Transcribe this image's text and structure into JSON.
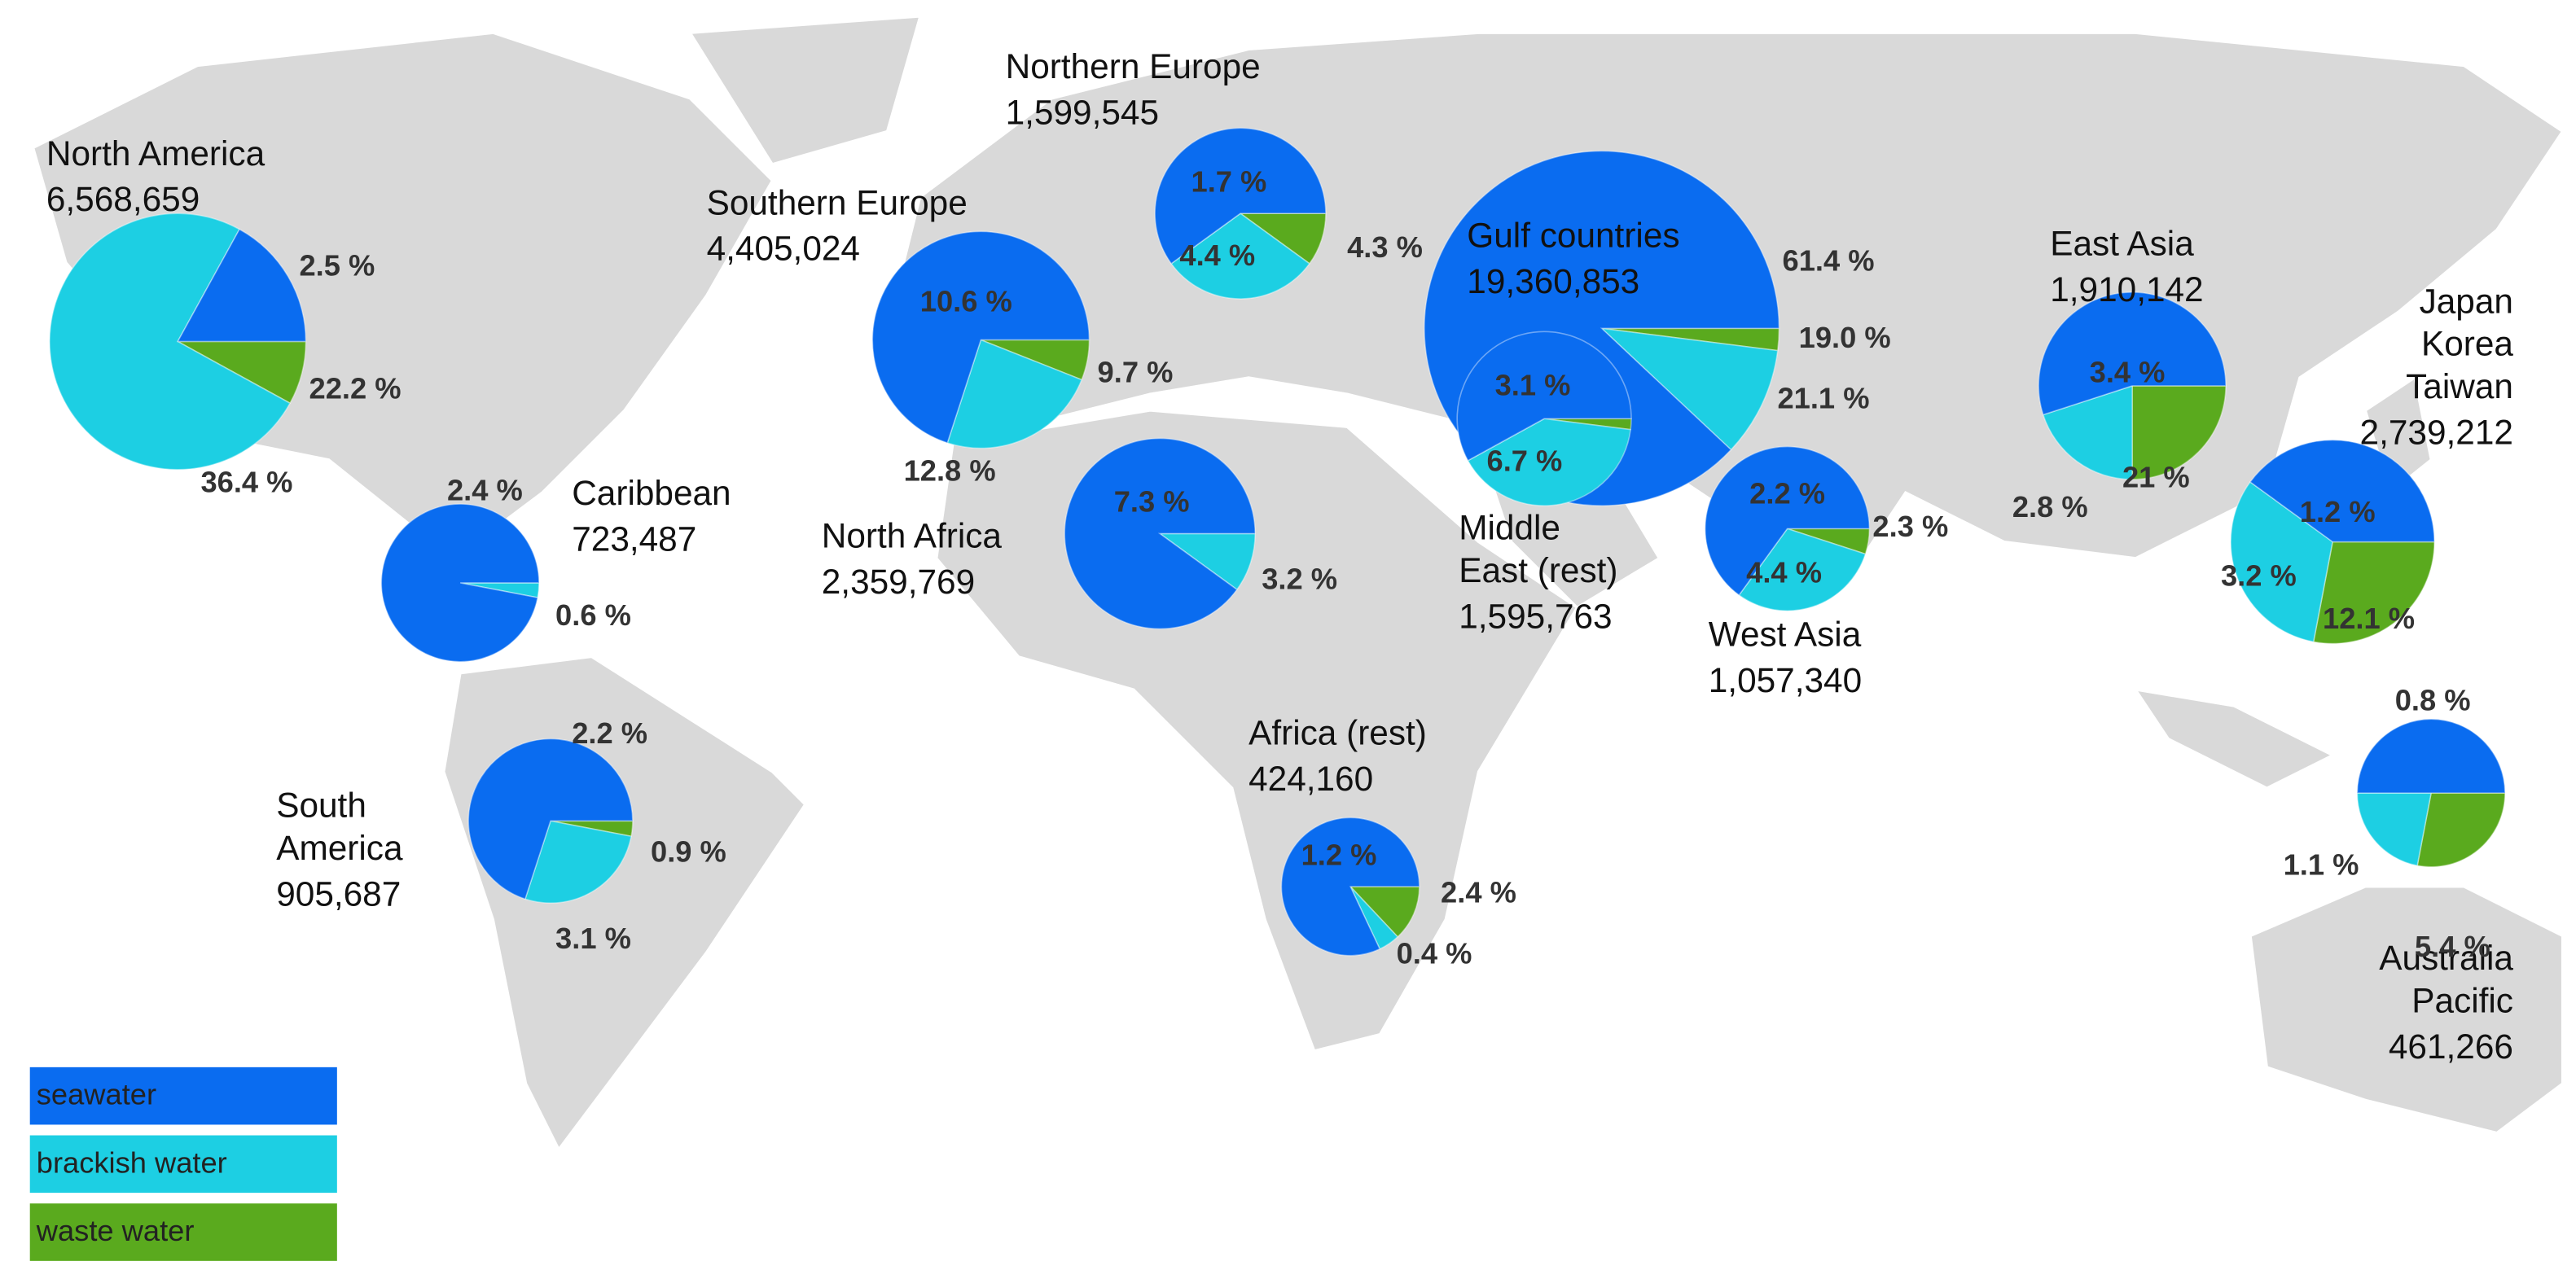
{
  "chart_data": {
    "type": "pie",
    "series": [
      {
        "name": "seawater",
        "color": "#0a6cf0"
      },
      {
        "name": "brackish water",
        "color": "#1dcfe3"
      },
      {
        "name": "waste water",
        "color": "#5aaa1e"
      }
    ],
    "regions": [
      {
        "name_lines": [
          "North America"
        ],
        "capacity": "6,568,659",
        "slices": [
          17,
          75,
          8
        ],
        "labels": [
          "2.5 %",
          "22.2 %",
          "36.4 %"
        ]
      },
      {
        "name_lines": [
          "Northern Europe"
        ],
        "capacity": "1,599,545",
        "slices": [
          60,
          30,
          10
        ],
        "labels": [
          "1.7 %",
          "4.4 %",
          "4.3 %"
        ]
      },
      {
        "name_lines": [
          "Southern Europe"
        ],
        "capacity": "4,405,024",
        "slices": [
          70,
          24,
          6
        ],
        "labels": [
          "10.6 %",
          "9.7 %",
          "12.8 %"
        ]
      },
      {
        "name_lines": [
          "Gulf countries"
        ],
        "capacity": "19,360,853",
        "slices": [
          88,
          10,
          2
        ],
        "labels": [
          "61.4 %",
          "19.0 %",
          "21.1 %"
        ]
      },
      {
        "name_lines": [
          "Middle",
          "East (rest)"
        ],
        "capacity": "1,595,763",
        "slices": [
          58,
          40,
          2
        ],
        "labels": [
          "3.1 %",
          "6.7 %"
        ]
      },
      {
        "name_lines": [
          "East Asia"
        ],
        "capacity": "1,910,142",
        "slices": [
          55,
          20,
          25
        ],
        "labels": [
          "3.4 %",
          "21 %",
          "2.8 %"
        ]
      },
      {
        "name_lines": [
          "Japan",
          "Korea",
          "Taiwan"
        ],
        "capacity": "2,739,212",
        "slices": [
          40,
          32,
          28
        ],
        "labels": [
          "1.2 %",
          "3.2 %",
          "12.1 %"
        ]
      },
      {
        "name_lines": [
          "Caribbean"
        ],
        "capacity": "723,487",
        "slices": [
          97,
          3,
          0
        ],
        "labels": [
          "2.4 %",
          "0.6 %"
        ]
      },
      {
        "name_lines": [
          "North Africa"
        ],
        "capacity": "2,359,769",
        "slices": [
          90,
          10,
          0
        ],
        "labels": [
          "7.3 %",
          "3.2 %"
        ]
      },
      {
        "name_lines": [
          "West Asia"
        ],
        "capacity": "1,057,340",
        "slices": [
          65,
          30,
          5
        ],
        "labels": [
          "2.2 %",
          "4.4 %",
          "2.3 %"
        ]
      },
      {
        "name_lines": [
          "South",
          "America"
        ],
        "capacity": "905,687",
        "slices": [
          70,
          27,
          3
        ],
        "labels": [
          "2.2 %",
          "0.9 %",
          "3.1 %"
        ]
      },
      {
        "name_lines": [
          "Africa (rest)"
        ],
        "capacity": "424,160",
        "slices": [
          82,
          5,
          13
        ],
        "labels": [
          "1.2 %",
          "2.4 %",
          "0.4 %"
        ]
      },
      {
        "name_lines": [
          "Australia",
          "Pacific"
        ],
        "capacity": "461,266",
        "slices": [
          50,
          22,
          28
        ],
        "labels": [
          "0.8 %",
          "1.1 %",
          "5.4 %"
        ]
      }
    ]
  }
}
